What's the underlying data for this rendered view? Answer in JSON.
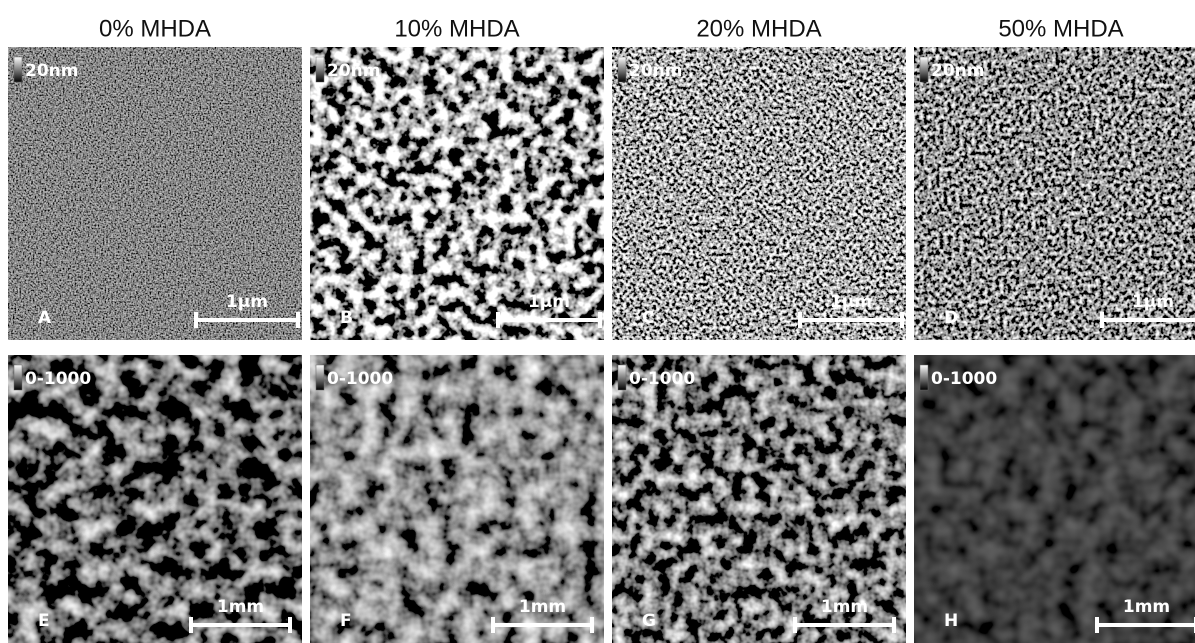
{
  "columns": [
    "0% MHDA",
    "10% MHDA",
    "20% MHDA",
    "50% MHDA"
  ],
  "panels": [
    {
      "label": "A",
      "scale": "20nm",
      "bar": "1µm"
    },
    {
      "label": "B",
      "scale": "20nm",
      "bar": "1µm"
    },
    {
      "label": "C",
      "scale": "20nm",
      "bar": "1µm"
    },
    {
      "label": "D",
      "scale": "20nm",
      "bar": "1µm"
    },
    {
      "label": "E",
      "scale": "0-1000",
      "bar": "1mm"
    },
    {
      "label": "F",
      "scale": "0-1000",
      "bar": "1mm"
    },
    {
      "label": "G",
      "scale": "0-1000",
      "bar": "1mm"
    },
    {
      "label": "H",
      "scale": "0-1000",
      "bar": "1mm"
    }
  ]
}
